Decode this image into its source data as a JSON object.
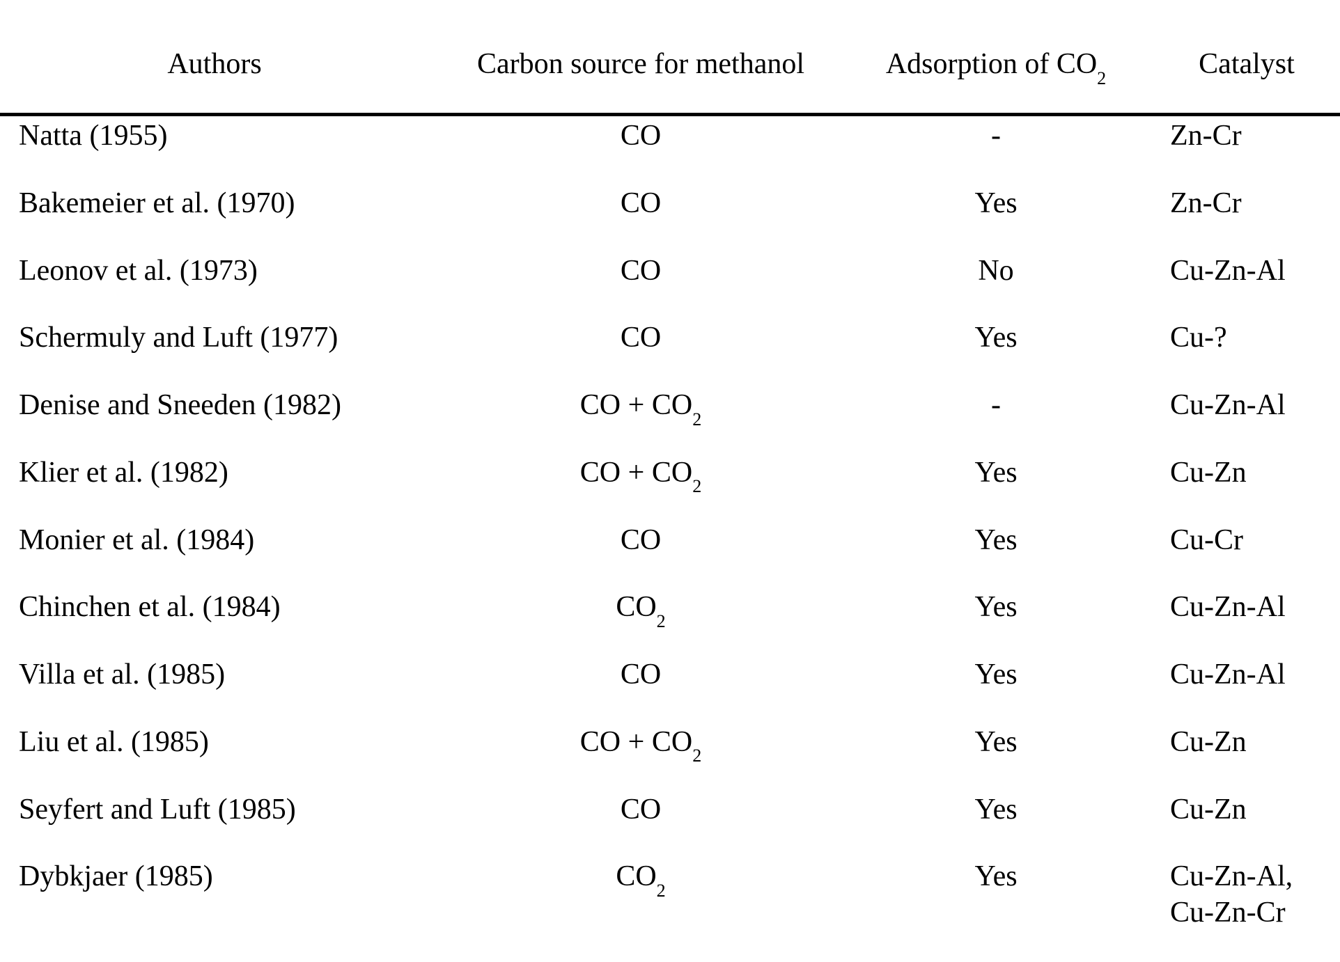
{
  "page": {
    "background": "#ffffff",
    "text_color": "#000000",
    "rule_color": "#000000"
  },
  "table": {
    "headers": [
      {
        "label": "Authors"
      },
      {
        "label": "Carbon source for methanol"
      },
      {
        "label": "Adsorption of CO2"
      },
      {
        "label": "Catalyst"
      }
    ],
    "rows": [
      {
        "author": "Natta (1955)",
        "carbon_source": "CO",
        "adsorption": "-",
        "catalyst": [
          "Zn-Cr"
        ]
      },
      {
        "author": "Bakemeier et al. (1970)",
        "carbon_source": "CO",
        "adsorption": "Yes",
        "catalyst": [
          "Zn-Cr"
        ]
      },
      {
        "author": "Leonov et al. (1973)",
        "carbon_source": "CO",
        "adsorption": "No",
        "catalyst": [
          "Cu-Zn-Al"
        ]
      },
      {
        "author": "Schermuly and Luft (1977)",
        "carbon_source": "CO",
        "adsorption": "Yes",
        "catalyst": [
          "Cu-?"
        ]
      },
      {
        "author": "Denise and Sneeden (1982)",
        "carbon_source": "CO + CO2",
        "adsorption": "-",
        "catalyst": [
          "Cu-Zn-Al"
        ]
      },
      {
        "author": "Klier et al. (1982)",
        "carbon_source": "CO + CO2",
        "adsorption": "Yes",
        "catalyst": [
          "Cu-Zn"
        ]
      },
      {
        "author": "Monier et al. (1984)",
        "carbon_source": "CO",
        "adsorption": "Yes",
        "catalyst": [
          "Cu-Cr"
        ]
      },
      {
        "author": "Chinchen et al. (1984)",
        "carbon_source": "CO2",
        "adsorption": "Yes",
        "catalyst": [
          "Cu-Zn-Al"
        ]
      },
      {
        "author": "Villa et al. (1985)",
        "carbon_source": "CO",
        "adsorption": "Yes",
        "catalyst": [
          "Cu-Zn-Al"
        ]
      },
      {
        "author": "Liu et al. (1985)",
        "carbon_source": "CO + CO2",
        "adsorption": "Yes",
        "catalyst": [
          "Cu-Zn"
        ]
      },
      {
        "author": "Seyfert and Luft (1985)",
        "carbon_source": "CO",
        "adsorption": "Yes",
        "catalyst": [
          "Cu-Zn"
        ]
      },
      {
        "author": "Dybkjaer (1985)",
        "carbon_source": "CO2",
        "adsorption": "Yes",
        "catalyst": [
          "Cu-Zn-Al,",
          "Cu-Zn-Cr"
        ]
      }
    ]
  }
}
